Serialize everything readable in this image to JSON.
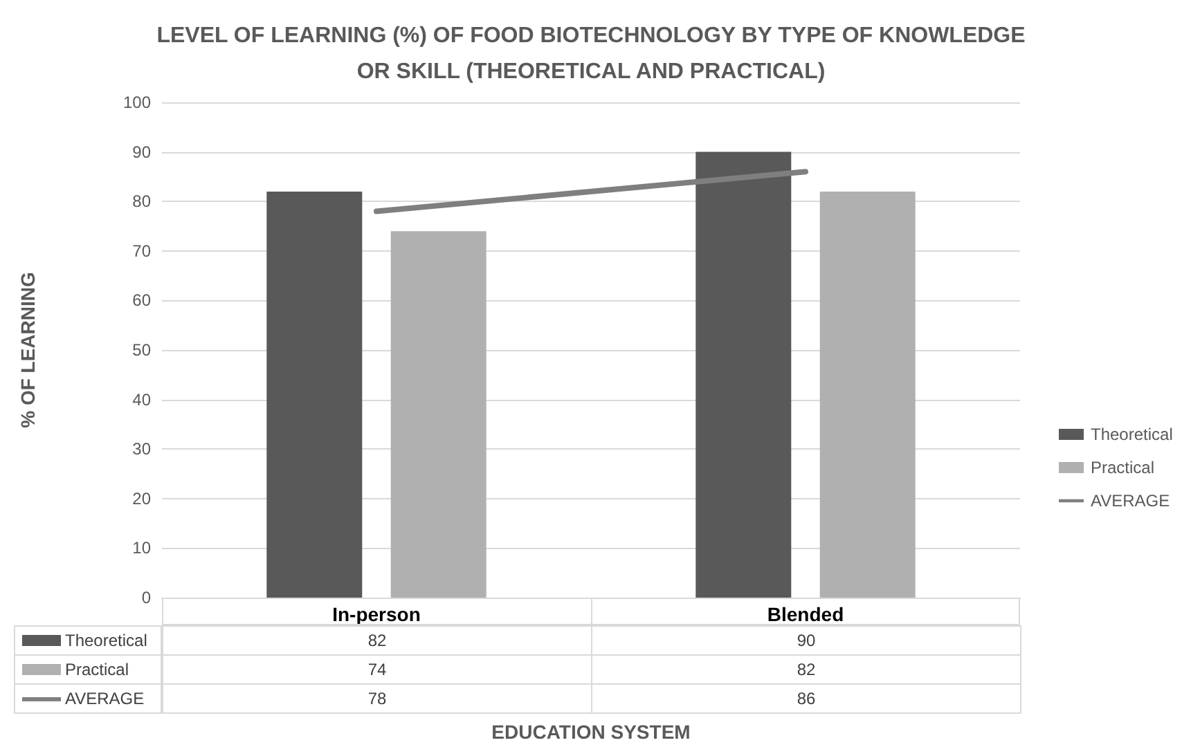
{
  "chart_data": {
    "type": "bar",
    "title": "LEVEL OF LEARNING (%) OF FOOD BIOTECHNOLOGY BY TYPE OF KNOWLEDGE\nOR SKILL (THEORETICAL AND PRACTICAL)",
    "annotations": [
      "EDUCATION SYSTEM"
    ],
    "ylabel": "% OF LEARNING",
    "categories": [
      "In-person",
      "Blended"
    ],
    "series": [
      {
        "name": "Theoretical",
        "color": "#595959",
        "values": [
          82,
          90
        ]
      },
      {
        "name": "Practical",
        "color": "#b0b0b0",
        "values": [
          74,
          82
        ]
      },
      {
        "name": "AVERAGE",
        "type": "line",
        "color": "#7f7f7f",
        "values": [
          78,
          86
        ]
      }
    ],
    "ylim": [
      0,
      100
    ],
    "yticks": [
      0,
      10,
      20,
      30,
      40,
      50,
      60,
      70,
      80,
      90,
      100
    ],
    "grid": "y",
    "legend": "right",
    "marker": "none",
    "data_labels": true
  }
}
